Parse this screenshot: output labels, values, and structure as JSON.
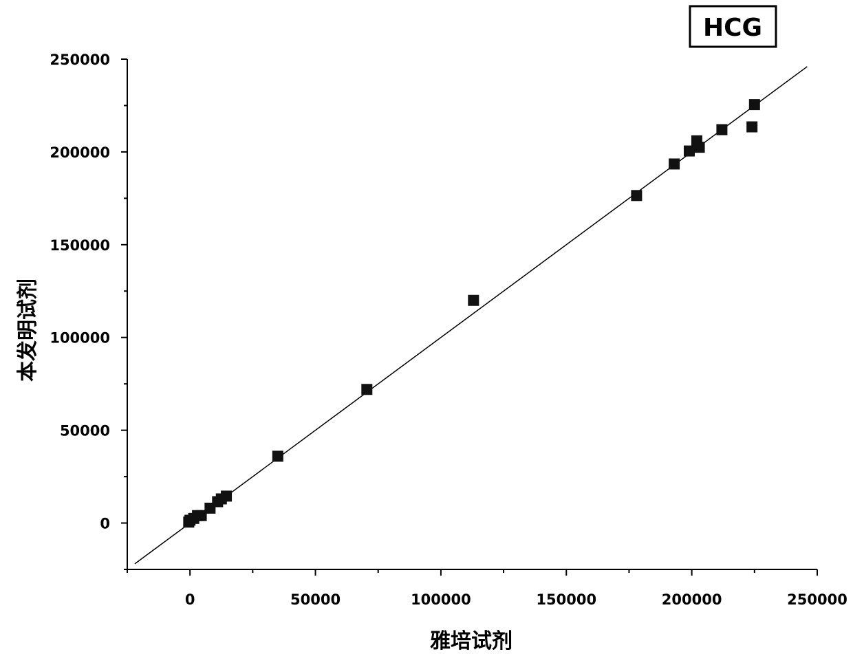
{
  "chart_data": {
    "type": "scatter",
    "title": "HCG",
    "xlabel": "雅培试剂",
    "ylabel": "本发明试剂",
    "xlim": [
      -25000,
      250000
    ],
    "ylim": [
      -25000,
      250000
    ],
    "x_ticks": [
      0,
      50000,
      100000,
      150000,
      200000,
      250000
    ],
    "y_ticks": [
      0,
      50000,
      100000,
      150000,
      200000,
      250000
    ],
    "x_tick_labels": [
      "0",
      "50000",
      "100000",
      "150000",
      "200000",
      "250000"
    ],
    "y_tick_labels": [
      "0",
      "50000",
      "100000",
      "150000",
      "200000",
      "250000"
    ],
    "grid": false,
    "marker": "square",
    "series": [
      {
        "points": [
          [
            -500,
            500
          ],
          [
            0,
            1500
          ],
          [
            1500,
            2500
          ],
          [
            3000,
            4000
          ],
          [
            4500,
            4000
          ],
          [
            8000,
            8000
          ],
          [
            11000,
            11500
          ],
          [
            12500,
            13000
          ],
          [
            14500,
            14500
          ],
          [
            35000,
            36000
          ],
          [
            70500,
            72000
          ],
          [
            113000,
            120000
          ],
          [
            178000,
            176500
          ],
          [
            193000,
            193500
          ],
          [
            199000,
            200500
          ],
          [
            202000,
            206000
          ],
          [
            203000,
            202500
          ],
          [
            212000,
            212000
          ],
          [
            224000,
            213500
          ],
          [
            225000,
            225500
          ]
        ]
      }
    ],
    "fit_line": {
      "x_start": -22000,
      "x_end": 246000,
      "slope": 1.0,
      "intercept": 0
    },
    "colors": {
      "marker": "#111111",
      "line": "#000000",
      "axis": "#000000"
    }
  }
}
